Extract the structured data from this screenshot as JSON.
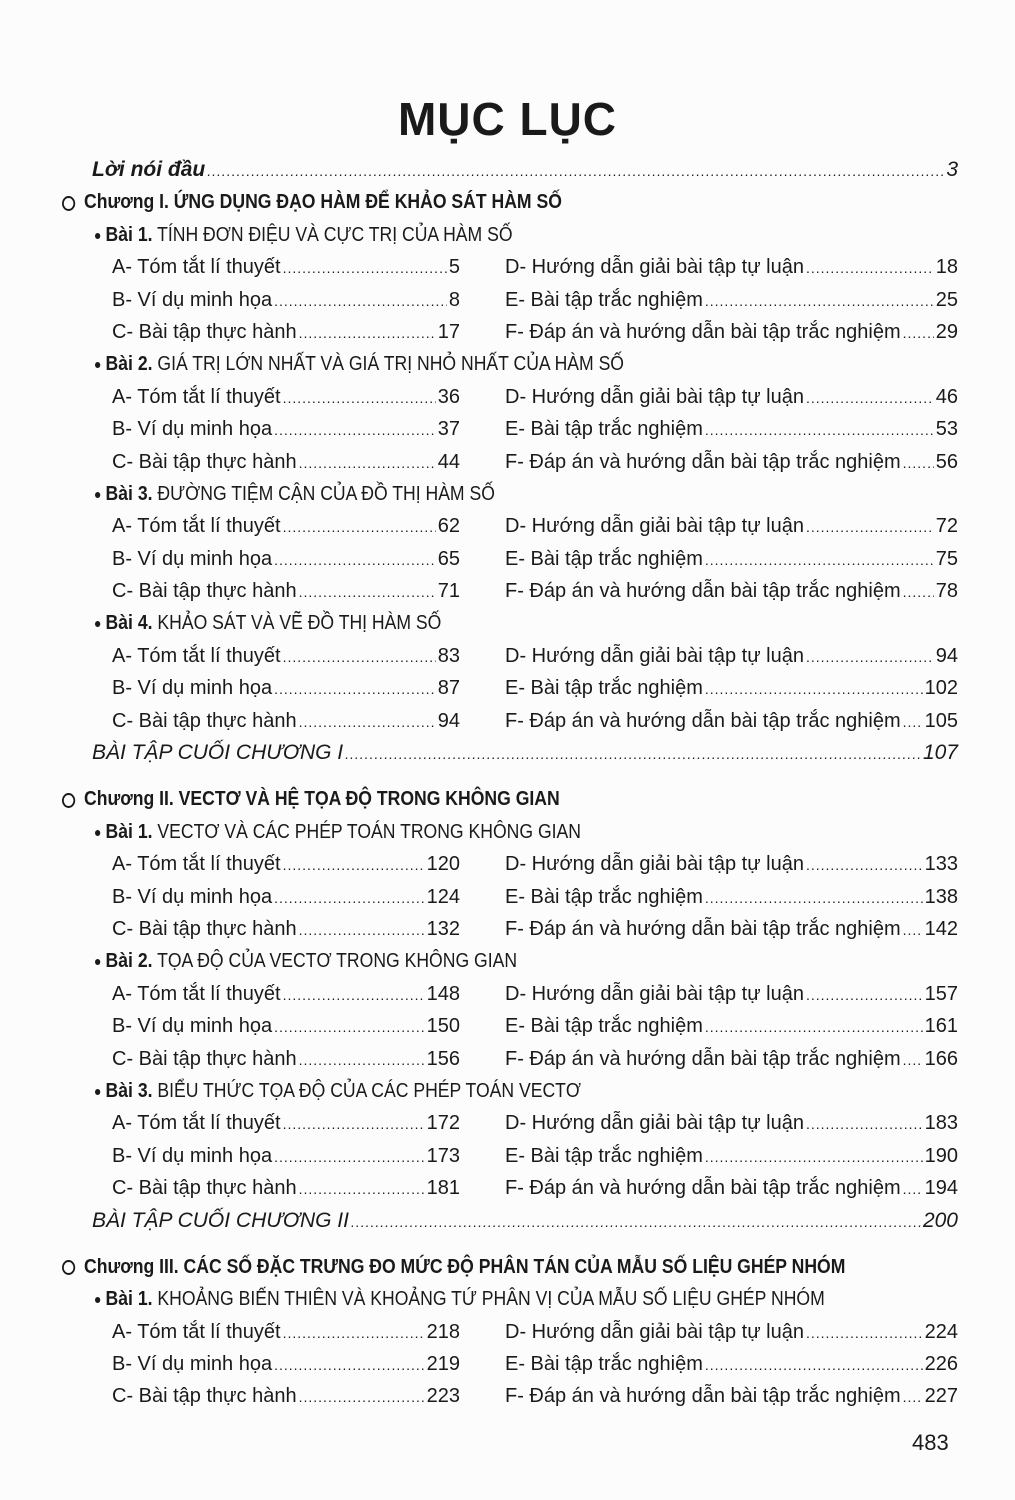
{
  "title": "MỤC LỤC",
  "intro": {
    "label": "Lời nói đầu",
    "page": "3"
  },
  "chapters": [
    {
      "label": "Chương I. ỨNG DỤNG ĐẠO HÀM ĐỂ KHẢO SÁT HÀM SỐ",
      "lessons": [
        {
          "num": "Bài 1.",
          "title": "TÍNH ĐƠN ĐIỆU VÀ CỰC TRỊ CỦA HÀM SỐ",
          "items": [
            [
              "A- Tóm tắt lí thuyết",
              "5"
            ],
            [
              "B- Ví dụ minh họa",
              "8"
            ],
            [
              "C- Bài tập thực hành",
              "17"
            ],
            [
              "D- Hướng dẫn giải bài tập tự luận",
              "18"
            ],
            [
              "E- Bài tập trắc nghiệm",
              "25"
            ],
            [
              "F- Đáp án và hướng dẫn bài tập trắc nghiệm",
              "29"
            ]
          ]
        },
        {
          "num": "Bài 2.",
          "title": "GIÁ TRỊ LỚN NHẤT VÀ GIÁ TRỊ NHỎ NHẤT CỦA HÀM SỐ",
          "items": [
            [
              "A- Tóm tắt lí thuyết",
              "36"
            ],
            [
              "B- Ví dụ minh họa",
              "37"
            ],
            [
              "C- Bài tập thực hành",
              "44"
            ],
            [
              "D- Hướng dẫn giải bài tập tự luận",
              "46"
            ],
            [
              "E- Bài tập trắc nghiệm",
              "53"
            ],
            [
              "F- Đáp án và hướng dẫn bài tập trắc nghiệm",
              "56"
            ]
          ]
        },
        {
          "num": "Bài 3.",
          "title": "ĐƯỜNG TIỆM CẬN CỦA ĐỒ THỊ HÀM SỐ",
          "items": [
            [
              "A- Tóm tắt lí thuyết",
              "62"
            ],
            [
              "B- Ví dụ minh họa",
              "65"
            ],
            [
              "C- Bài tập thực hành",
              "71"
            ],
            [
              "D- Hướng dẫn giải bài tập tự luận",
              "72"
            ],
            [
              "E- Bài tập trắc nghiệm",
              "75"
            ],
            [
              "F- Đáp án và hướng dẫn bài tập trắc nghiệm",
              "78"
            ]
          ]
        },
        {
          "num": "Bài 4.",
          "title": "KHẢO SÁT VÀ VẼ ĐỒ THỊ HÀM SỐ",
          "items": [
            [
              "A- Tóm tắt lí thuyết",
              "83"
            ],
            [
              "B- Ví dụ minh họa",
              "87"
            ],
            [
              "C- Bài tập thực hành",
              "94"
            ],
            [
              "D- Hướng dẫn giải bài tập tự luận",
              "94"
            ],
            [
              "E- Bài tập trắc nghiệm",
              "102"
            ],
            [
              "F- Đáp án và hướng dẫn bài tập trắc nghiệm",
              "105"
            ]
          ]
        }
      ],
      "review": {
        "label": "BÀI TẬP CUỐI CHƯƠNG I",
        "page": "107"
      }
    },
    {
      "label": "Chương II. VECTƠ VÀ HỆ TỌA ĐỘ TRONG KHÔNG GIAN",
      "lessons": [
        {
          "num": "Bài 1.",
          "title": "VECTƠ VÀ CÁC PHÉP TOÁN TRONG KHÔNG GIAN",
          "items": [
            [
              "A- Tóm tắt lí thuyết",
              "120"
            ],
            [
              "B- Ví dụ minh họa",
              "124"
            ],
            [
              "C- Bài tập thực hành",
              "132"
            ],
            [
              "D- Hướng dẫn giải bài tập tự luận",
              "133"
            ],
            [
              "E- Bài tập trắc nghiệm",
              "138"
            ],
            [
              "F- Đáp án và hướng dẫn bài tập trắc nghiệm",
              "142"
            ]
          ]
        },
        {
          "num": "Bài 2.",
          "title": "TỌA ĐỘ CỦA VECTƠ TRONG KHÔNG GIAN",
          "items": [
            [
              "A- Tóm tắt lí thuyết",
              "148"
            ],
            [
              "B- Ví dụ minh họa",
              "150"
            ],
            [
              "C- Bài tập thực hành",
              "156"
            ],
            [
              "D- Hướng dẫn giải bài tập tự luận",
              "157"
            ],
            [
              "E- Bài tập trắc nghiệm",
              "161"
            ],
            [
              "F- Đáp án và hướng dẫn bài tập trắc nghiệm",
              "166"
            ]
          ]
        },
        {
          "num": "Bài 3.",
          "title": "BIỂU THỨC TỌA ĐỘ CỦA CÁC  PHÉP TOÁN VECTƠ",
          "items": [
            [
              "A- Tóm tắt lí thuyết",
              "172"
            ],
            [
              "B- Ví dụ minh họa",
              "173"
            ],
            [
              "C- Bài tập thực hành",
              "181"
            ],
            [
              "D- Hướng dẫn giải bài tập tự luận",
              "183"
            ],
            [
              "E- Bài tập trắc nghiệm",
              "190"
            ],
            [
              "F- Đáp án và hướng dẫn bài tập trắc nghiệm",
              "194"
            ]
          ]
        }
      ],
      "review": {
        "label": "BÀI TẬP CUỐI CHƯƠNG II",
        "page": "200"
      }
    },
    {
      "label": "Chương III. CÁC SỐ ĐẶC TRƯNG ĐO MỨC ĐỘ PHÂN TÁN CỦA MẪU SỐ LIỆU GHÉP NHÓM",
      "lessons": [
        {
          "num": "Bài 1.",
          "title": "KHOẢNG BIẾN THIÊN VÀ KHOẢNG TỨ PHÂN VỊ CỦA MẪU SỐ LIỆU GHÉP NHÓM",
          "items": [
            [
              "A- Tóm tắt lí thuyết",
              "218"
            ],
            [
              "B- Ví dụ minh họa",
              "219"
            ],
            [
              "C- Bài tập thực hành",
              "223"
            ],
            [
              "D- Hướng dẫn giải bài tập tự luận",
              "224"
            ],
            [
              "E- Bài tập trắc nghiệm",
              "226"
            ],
            [
              "F- Đáp án và hướng dẫn bài tập trắc nghiệm",
              "227"
            ]
          ]
        }
      ]
    }
  ],
  "page_number": "483"
}
